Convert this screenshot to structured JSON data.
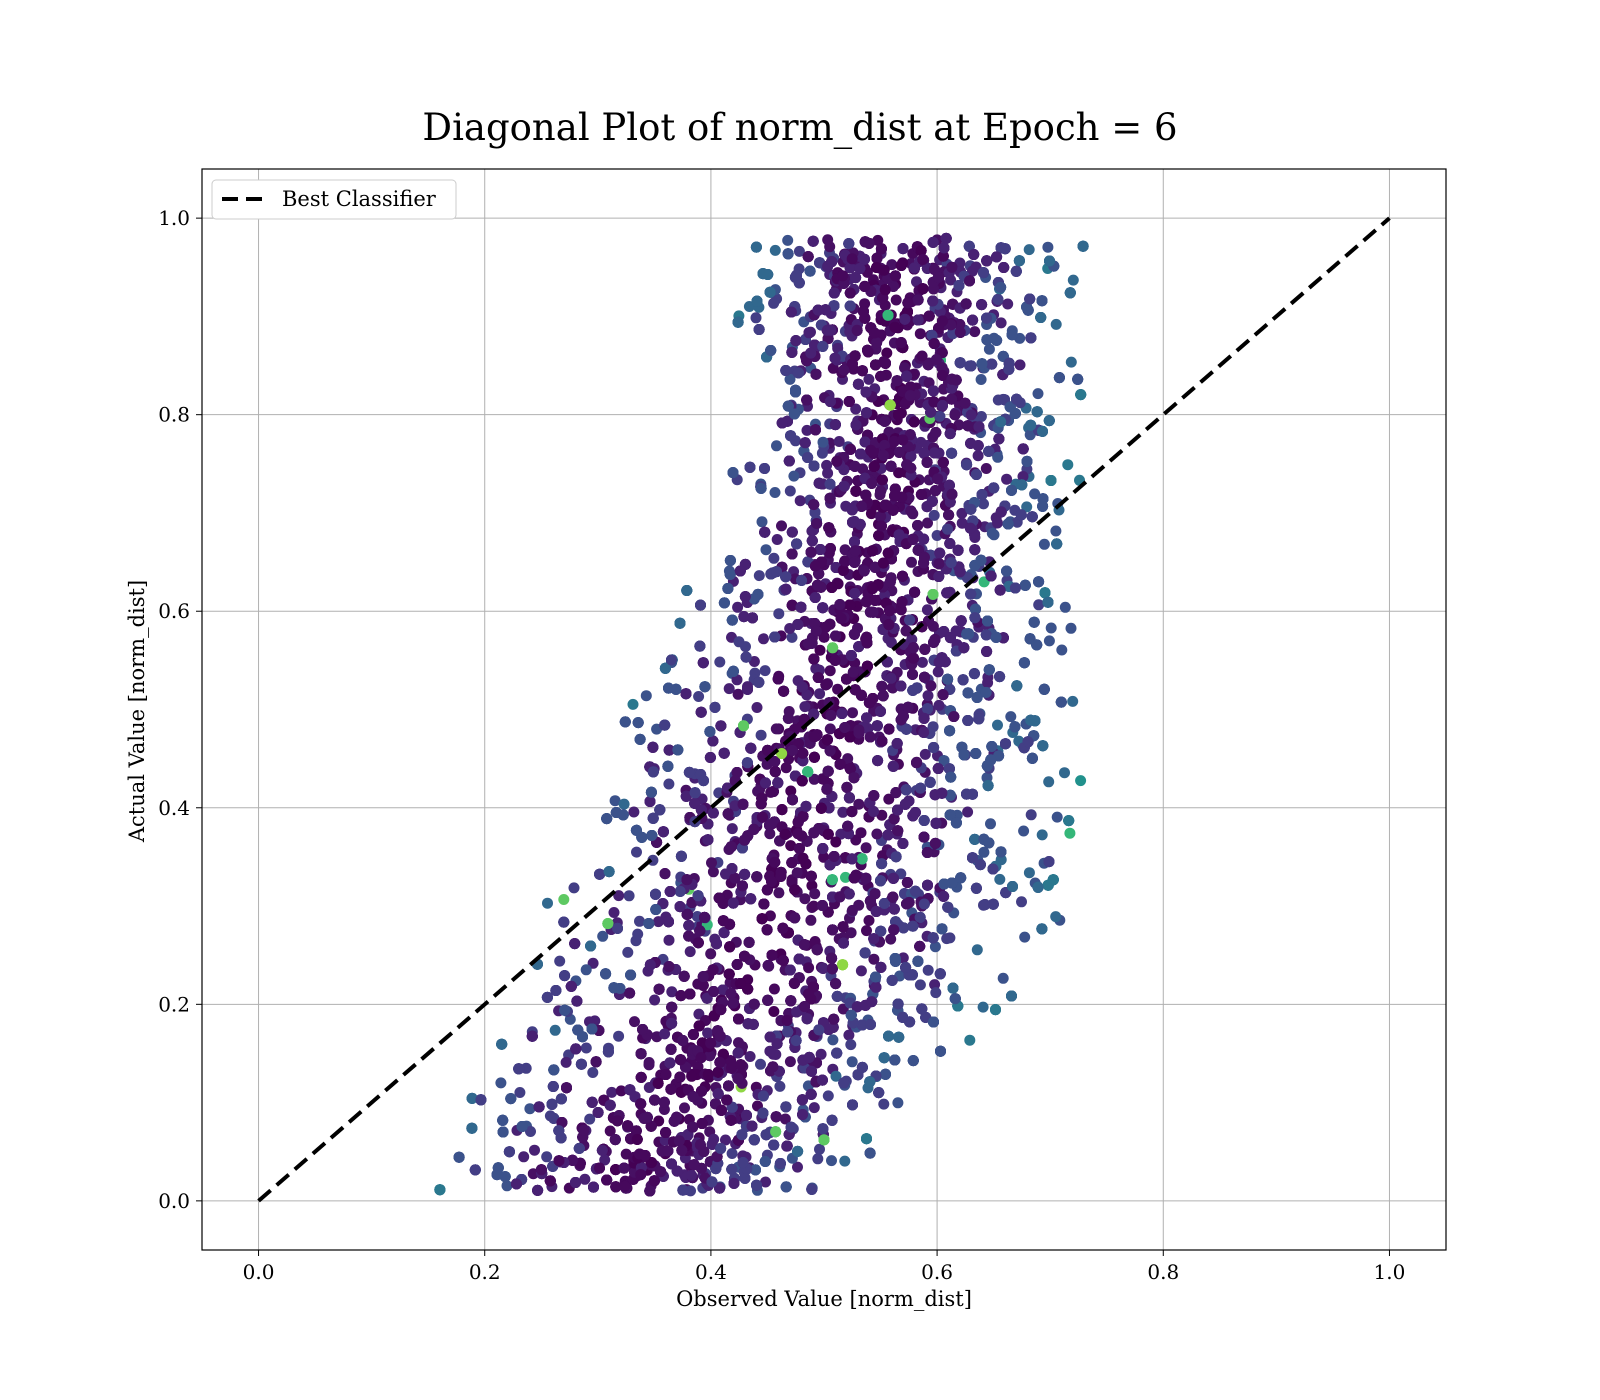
{
  "chart_data": {
    "type": "scatter",
    "title": "Diagonal Plot of norm_dist at Epoch = 6",
    "xlabel": "Observed Value [norm_dist]",
    "ylabel": "Actual Value [norm_dist]",
    "xlim": [
      -0.05,
      1.05
    ],
    "ylim": [
      -0.05,
      1.05
    ],
    "xticks": [
      "0.0",
      "0.2",
      "0.4",
      "0.6",
      "0.8",
      "1.0"
    ],
    "yticks": [
      "0.0",
      "0.2",
      "0.4",
      "0.6",
      "0.8",
      "1.0"
    ],
    "grid": true,
    "legend_position": "top-left",
    "colormap": "viridis",
    "series": [
      {
        "name": "Best Classifier",
        "kind": "line",
        "style": "dashed",
        "color": "#000000",
        "x": [
          0.0,
          1.0
        ],
        "y": [
          0.0,
          1.0
        ]
      },
      {
        "kind": "scatter",
        "description_density": [
          {
            "x": 0.21,
            "y": 0.15
          },
          {
            "x": 0.27,
            "y": 0.25
          },
          {
            "x": 0.33,
            "y": 0.35
          },
          {
            "x": 0.38,
            "y": 0.45
          },
          {
            "x": 0.4,
            "y": 0.6
          },
          {
            "x": 0.43,
            "y": 0.75
          },
          {
            "x": 0.45,
            "y": 0.3
          },
          {
            "x": 0.5,
            "y": 0.5
          },
          {
            "x": 0.55,
            "y": 0.65
          },
          {
            "x": 0.6,
            "y": 0.75
          },
          {
            "x": 0.63,
            "y": 0.55
          },
          {
            "x": 0.48,
            "y": 0.15
          }
        ],
        "x_range": [
          0.16,
          0.71
        ],
        "y_range": [
          0.01,
          0.98
        ]
      }
    ]
  }
}
